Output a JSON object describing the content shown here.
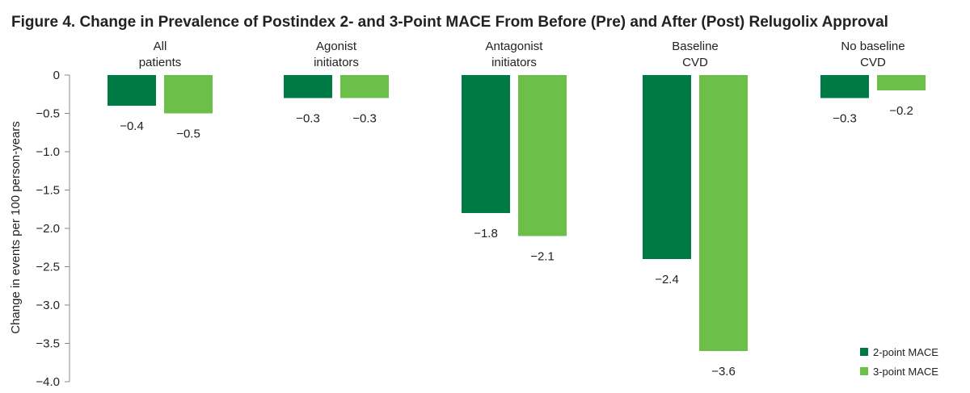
{
  "chart_data": {
    "type": "bar",
    "title": "Figure 4. Change in Prevalence of Postindex 2- and 3-Point MACE From Before (Pre) and After (Post) Relugolix Approval",
    "ylabel": "Change in events per 100 person-years",
    "xlabel": "",
    "ylim": [
      -4.0,
      0
    ],
    "yticks": [
      "0",
      "-0.5",
      "-1.0",
      "-1.5",
      "-2.0",
      "-2.5",
      "-3.0",
      "-3.5",
      "-4.0"
    ],
    "ytick_values": [
      0,
      -0.5,
      -1.0,
      -1.5,
      -2.0,
      -2.5,
      -3.0,
      -3.5,
      -4.0
    ],
    "categories": [
      [
        "All",
        "patients"
      ],
      [
        "Agonist",
        "initiators"
      ],
      [
        "Antagonist",
        "initiators"
      ],
      [
        "Baseline",
        "CVD"
      ],
      [
        "No baseline",
        "CVD"
      ]
    ],
    "series": [
      {
        "name": "2-point MACE",
        "color": "#007a45",
        "values": [
          -0.4,
          -0.3,
          -1.8,
          -2.4,
          -0.3
        ],
        "labels": [
          "−0.4",
          "−0.3",
          "−1.8",
          "−2.4",
          "−0.3"
        ]
      },
      {
        "name": "3-point MACE",
        "color": "#6cc04a",
        "values": [
          -0.5,
          -0.3,
          -2.1,
          -3.6,
          -0.2
        ],
        "labels": [
          "−0.5",
          "−0.3",
          "−2.1",
          "−3.6",
          "−0.2"
        ]
      }
    ],
    "grid": false,
    "legend_position": "bottom-right"
  }
}
